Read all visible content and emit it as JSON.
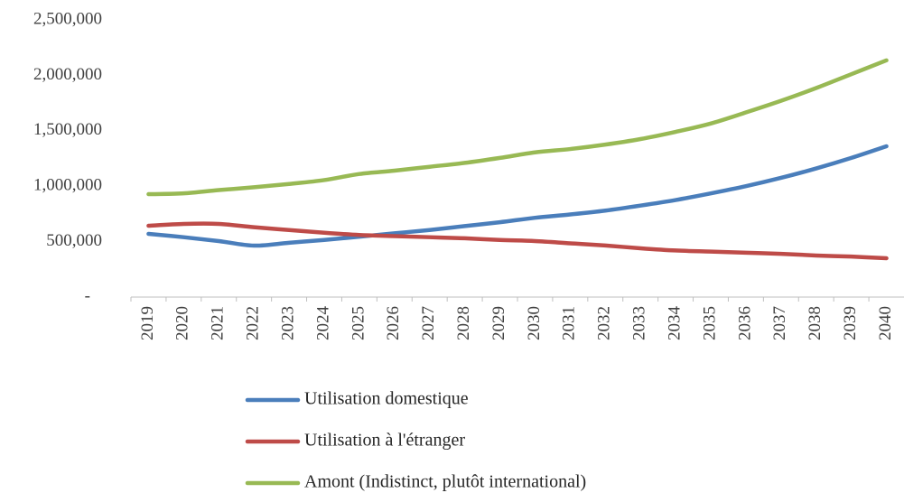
{
  "chart_data": {
    "type": "line",
    "categories": [
      "2019",
      "2020",
      "2021",
      "2022",
      "2023",
      "2024",
      "2025",
      "2026",
      "2027",
      "2028",
      "2029",
      "2030",
      "2031",
      "2032",
      "2033",
      "2034",
      "2035",
      "2036",
      "2037",
      "2038",
      "2039",
      "2040"
    ],
    "series": [
      {
        "name": "Utilisation domestique",
        "color": "#4a7ebb",
        "values": [
          570000,
          540000,
          505000,
          464000,
          490000,
          515000,
          545000,
          575000,
          605000,
          640000,
          675000,
          715000,
          745000,
          780000,
          825000,
          875000,
          935000,
          1000000,
          1075000,
          1160000,
          1255000,
          1360000
        ]
      },
      {
        "name": "Utilisation à l'étranger",
        "color": "#be4b48",
        "values": [
          643000,
          660000,
          660000,
          630000,
          605000,
          580000,
          560000,
          550000,
          540000,
          530000,
          515000,
          505000,
          485000,
          465000,
          440000,
          420000,
          410000,
          400000,
          390000,
          375000,
          365000,
          350000
        ]
      },
      {
        "name": "Amont (Indistinct, plutôt international)",
        "color": "#98b954",
        "values": [
          928000,
          935000,
          965000,
          990000,
          1020000,
          1055000,
          1110000,
          1140000,
          1175000,
          1210000,
          1255000,
          1305000,
          1335000,
          1375000,
          1425000,
          1490000,
          1565000,
          1665000,
          1770000,
          1885000,
          2010000,
          2135000
        ]
      }
    ],
    "ylim": [
      0,
      2500000
    ],
    "yticks": [
      {
        "value": 0,
        "label": "-"
      },
      {
        "value": 500000,
        "label": "500,000"
      },
      {
        "value": 1000000,
        "label": "1,000,000"
      },
      {
        "value": 1500000,
        "label": "1,500,000"
      },
      {
        "value": 2000000,
        "label": "2,000,000"
      },
      {
        "value": 2500000,
        "label": "2,500,000"
      }
    ],
    "grid": false,
    "legend": "bottom"
  }
}
